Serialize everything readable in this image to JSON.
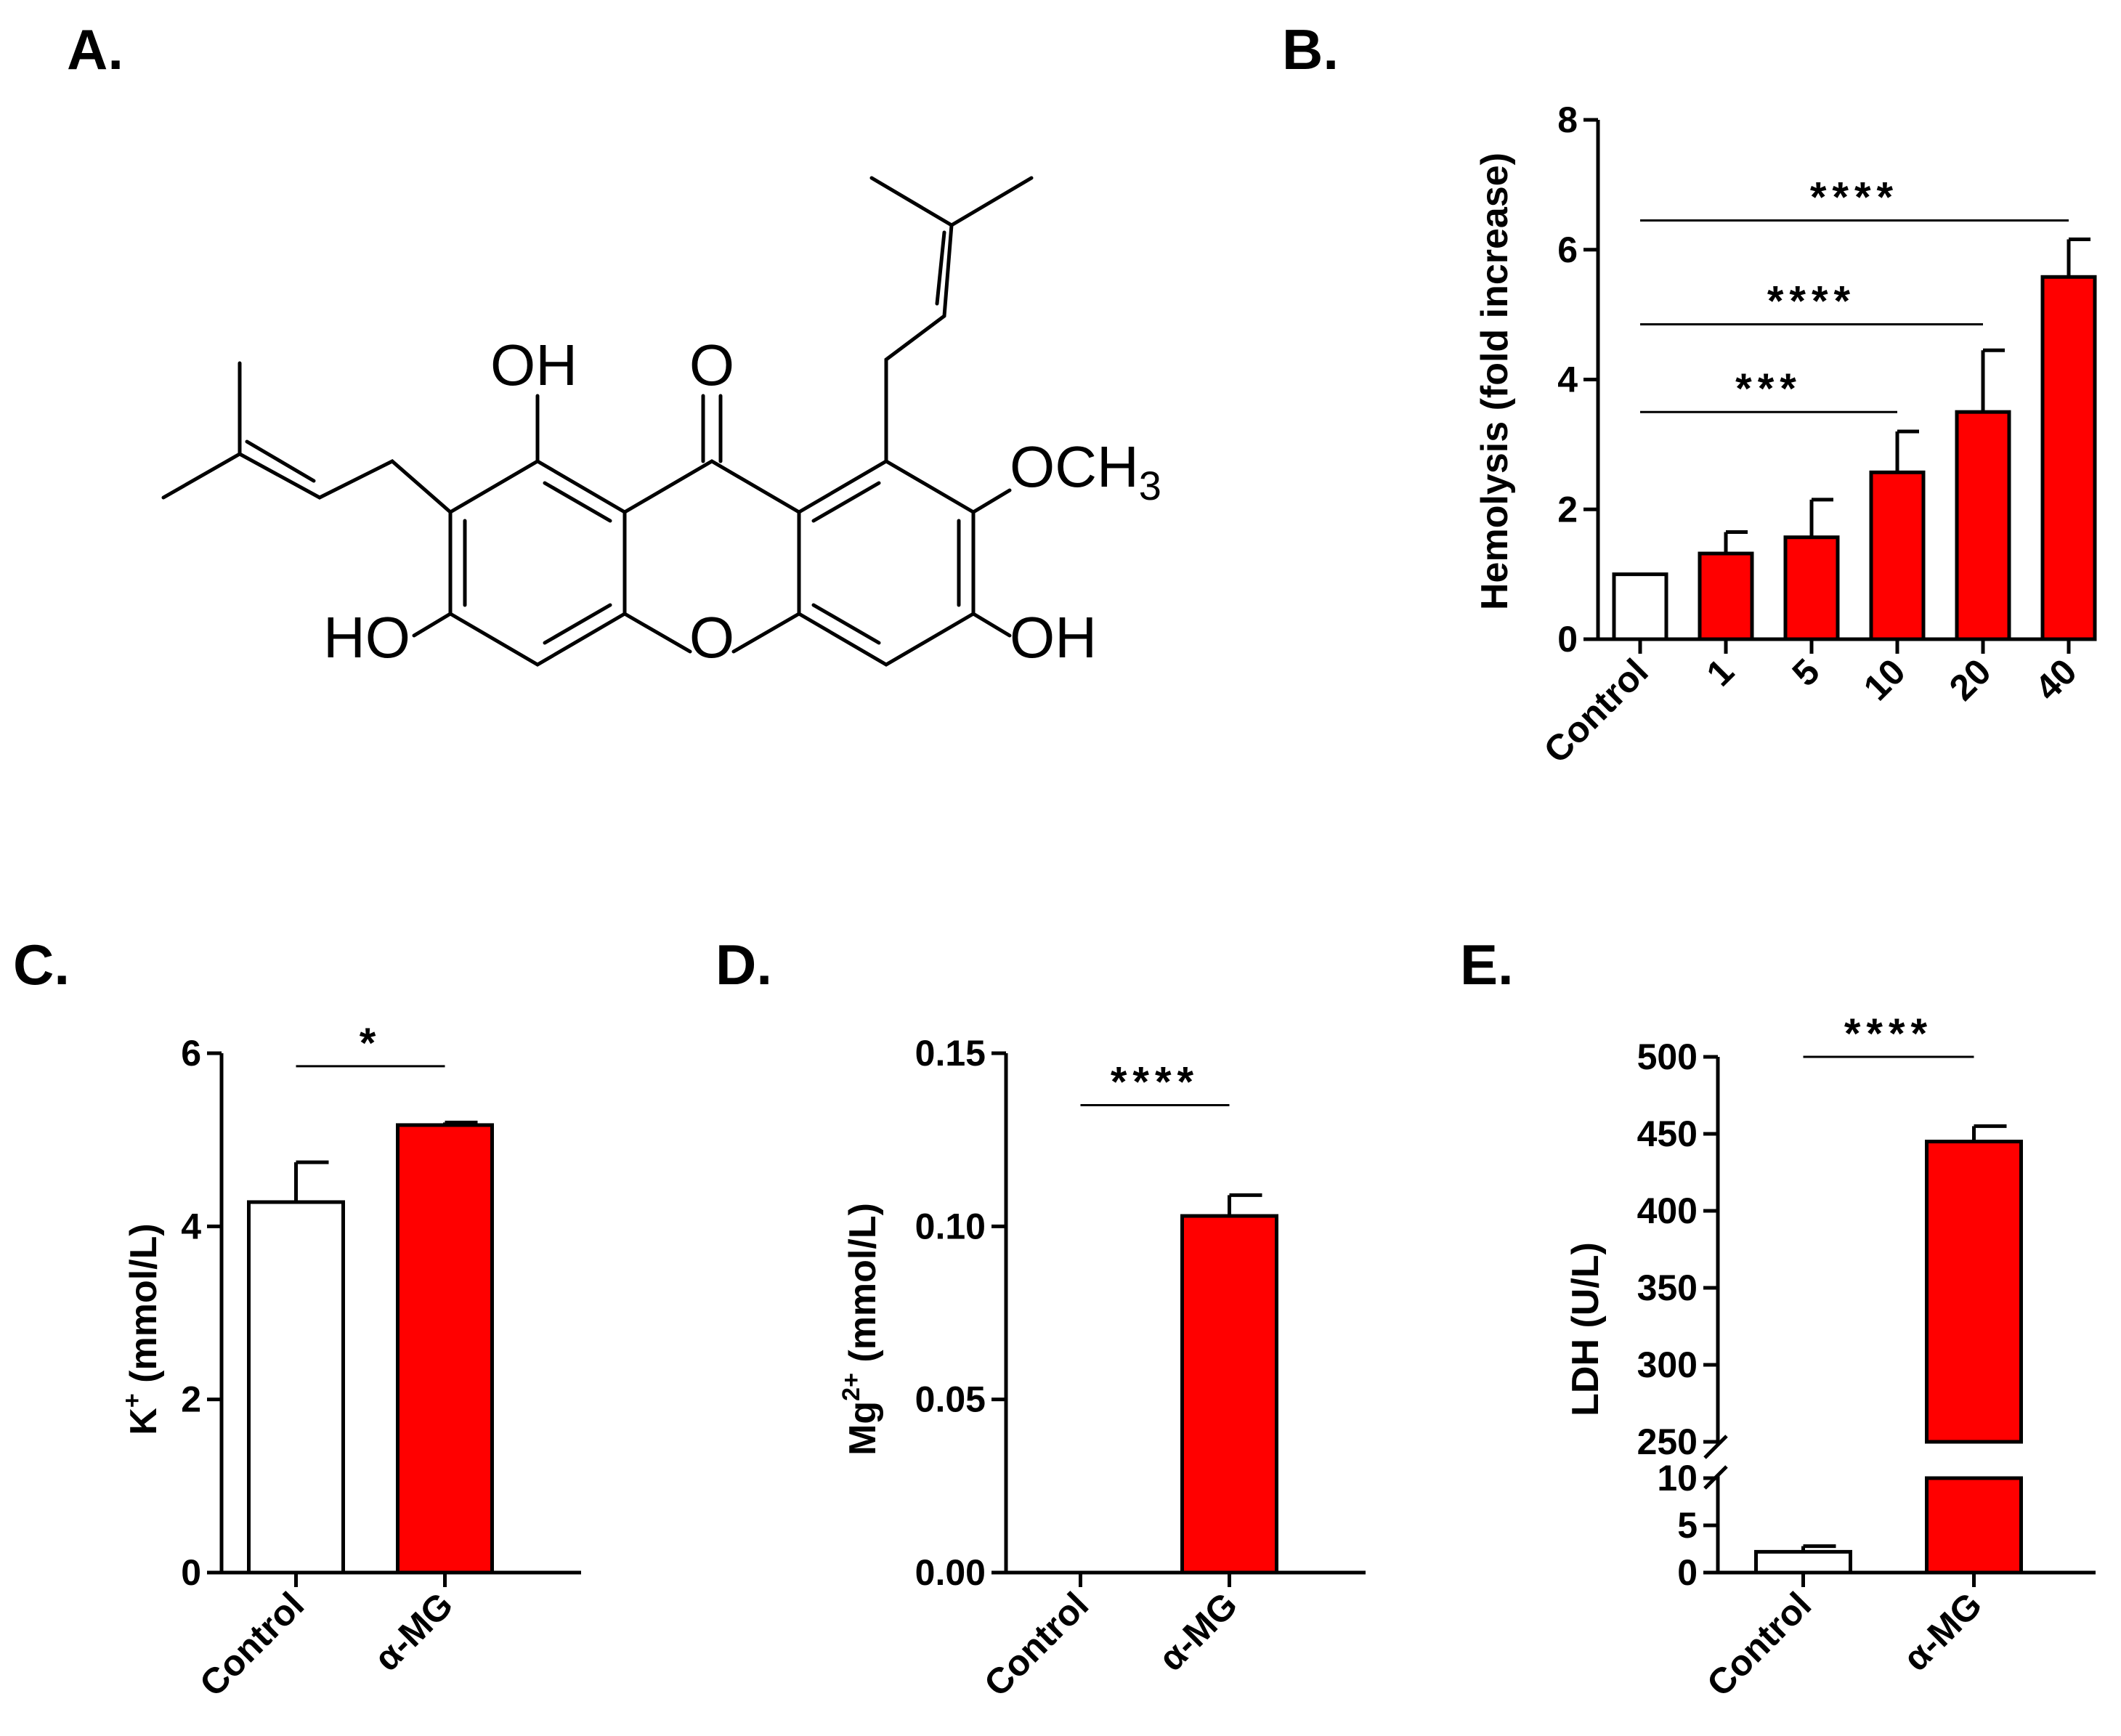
{
  "panels": {
    "a": "A.",
    "b": "B.",
    "c": "C.",
    "d": "D.",
    "e": "E."
  },
  "molecule": {
    "oh_top": "OH",
    "carbonyl_o": "O",
    "methoxy": "OCH",
    "methoxy_sub": "3",
    "ho_left": "HO",
    "ring_o": "O",
    "oh_right": "OH"
  },
  "colors": {
    "treated": "#ff0000",
    "control": "#ffffff",
    "stroke": "#000000"
  },
  "chart_data": [
    {
      "id": "B",
      "type": "bar",
      "ylabel": "Hemolysis (fold increase)",
      "ylim": [
        0,
        8
      ],
      "yticks": [
        "0",
        "2",
        "4",
        "6",
        "8"
      ],
      "categories": [
        "Control",
        "1",
        "5",
        "10",
        "20",
        "40"
      ],
      "values": [
        1.0,
        1.32,
        1.57,
        2.57,
        3.5,
        5.58
      ],
      "errors": [
        0,
        0.33,
        0.58,
        0.63,
        0.95,
        0.58
      ],
      "significance": [
        {
          "label": "***",
          "from": "Control",
          "to": "10",
          "y": 3.5
        },
        {
          "label": "****",
          "from": "Control",
          "to": "20",
          "y": 4.85
        },
        {
          "label": "****",
          "from": "Control",
          "to": "40",
          "y": 6.45
        }
      ]
    },
    {
      "id": "C",
      "type": "bar",
      "ylabel_main": "K",
      "ylabel_sup": "+",
      "ylabel_rest": " (mmol/L)",
      "ylim": [
        0,
        6
      ],
      "yticks": [
        "0",
        "2",
        "4",
        "6"
      ],
      "categories": [
        "Control",
        "α-MG"
      ],
      "values": [
        4.28,
        5.17
      ],
      "errors": [
        0.46,
        0.03
      ],
      "significance": [
        {
          "label": "*",
          "from": "Control",
          "to": "α-MG",
          "y": 5.85
        }
      ]
    },
    {
      "id": "D",
      "type": "bar",
      "ylabel_main": "Mg",
      "ylabel_sup": "2+",
      "ylabel_rest": " (mmol/L)",
      "ylim": [
        0,
        0.15
      ],
      "yticks": [
        "0.00",
        "0.05",
        "0.10",
        "0.15"
      ],
      "categories": [
        "Control",
        "α-MG"
      ],
      "values": [
        0.0,
        0.103
      ],
      "errors": [
        0,
        0.006
      ],
      "significance": [
        {
          "label": "****",
          "from": "Control",
          "to": "α-MG",
          "y": 0.135
        }
      ]
    },
    {
      "id": "E",
      "type": "bar",
      "ylabel": "LDH (U/L)",
      "axis_break": {
        "lower": [
          0,
          10
        ],
        "upper": [
          250,
          500
        ]
      },
      "yticks": [
        "0",
        "5",
        "10",
        "250",
        "300",
        "350",
        "400",
        "450",
        "500"
      ],
      "categories": [
        "Control",
        "α-MG"
      ],
      "values": [
        2.2,
        445
      ],
      "errors": [
        0.6,
        10
      ],
      "significance": [
        {
          "label": "****",
          "from": "Control",
          "to": "α-MG",
          "y": 500
        }
      ]
    }
  ]
}
